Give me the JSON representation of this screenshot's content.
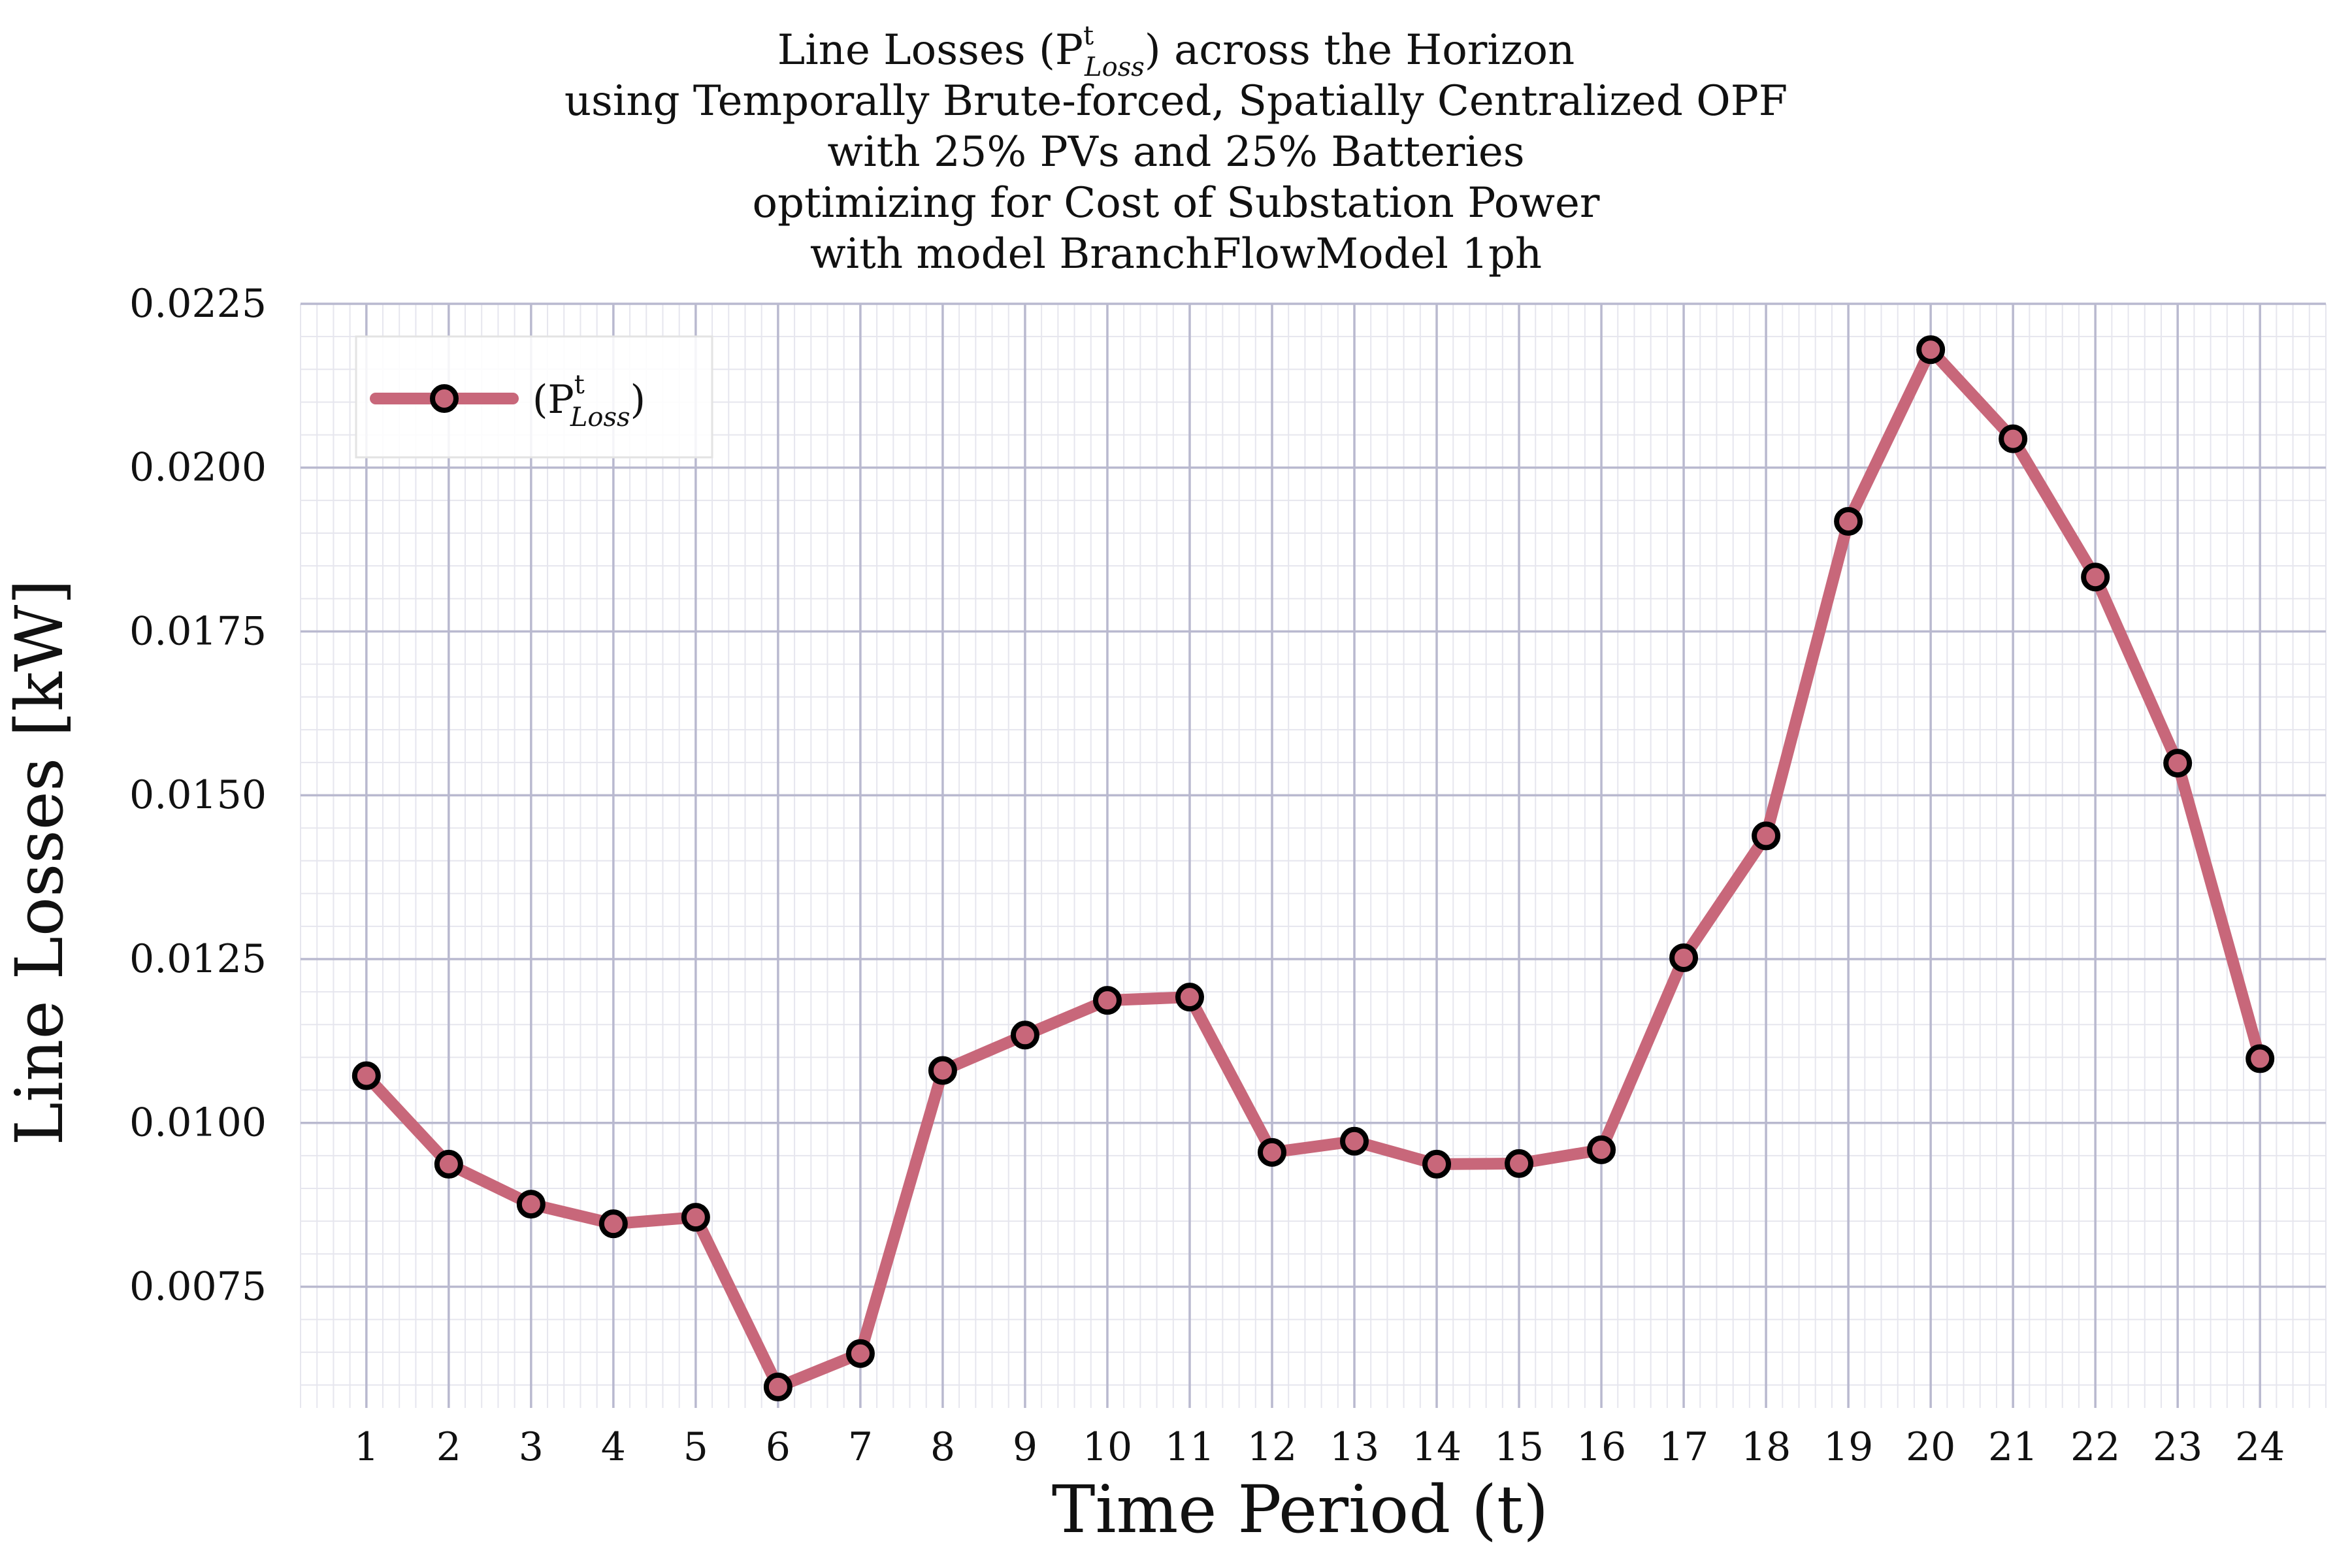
{
  "chart_data": {
    "type": "line",
    "title_lines": [
      "Line Losses (P",
      "using Temporally Brute-forced, Spatially Centralized OPF",
      "with 25% PVs and 25% Batteries",
      "optimizing for Cost of Substation Power",
      "with model BranchFlowModel 1ph"
    ],
    "title_math": {
      "base": "P",
      "sup": "t",
      "sub": "Loss",
      "suffix": ") across the Horizon"
    },
    "xlabel": "Time Period (t)",
    "ylabel": "Line Losses [kW]",
    "x": [
      1,
      2,
      3,
      4,
      5,
      6,
      7,
      8,
      9,
      10,
      11,
      12,
      13,
      14,
      15,
      16,
      17,
      18,
      19,
      20,
      21,
      22,
      23,
      24
    ],
    "xtick_labels": [
      "1",
      "2",
      "3",
      "4",
      "5",
      "6",
      "7",
      "8",
      "9",
      "10",
      "11",
      "12",
      "13",
      "14",
      "15",
      "16",
      "17",
      "18",
      "19",
      "20",
      "21",
      "22",
      "23",
      "24"
    ],
    "ytick_labels": [
      "0.0075",
      "0.0100",
      "0.0125",
      "0.0150",
      "0.0175",
      "0.0200",
      "0.0225"
    ],
    "yticks": [
      0.0075,
      0.01,
      0.0125,
      0.015,
      0.0175,
      0.02,
      0.0225
    ],
    "xlim": [
      0.2,
      24.8
    ],
    "ylim": [
      0.00565,
      0.0225
    ],
    "grid": true,
    "legend_position": "top-left",
    "series": [
      {
        "name": "(P^t_Loss)",
        "color": "#c8677a",
        "marker_edge": "#000000",
        "values": [
          0.01072,
          0.00937,
          0.00876,
          0.00846,
          0.00856,
          0.00597,
          0.00648,
          0.0108,
          0.01134,
          0.01187,
          0.01192,
          0.00955,
          0.00972,
          0.00937,
          0.00938,
          0.00959,
          0.01252,
          0.01438,
          0.01918,
          0.0218,
          0.02044,
          0.01833,
          0.01549,
          0.01098
        ]
      }
    ],
    "legend_label": {
      "open": "(P",
      "sup": "t",
      "sub": "Loss",
      "close": ")"
    }
  }
}
